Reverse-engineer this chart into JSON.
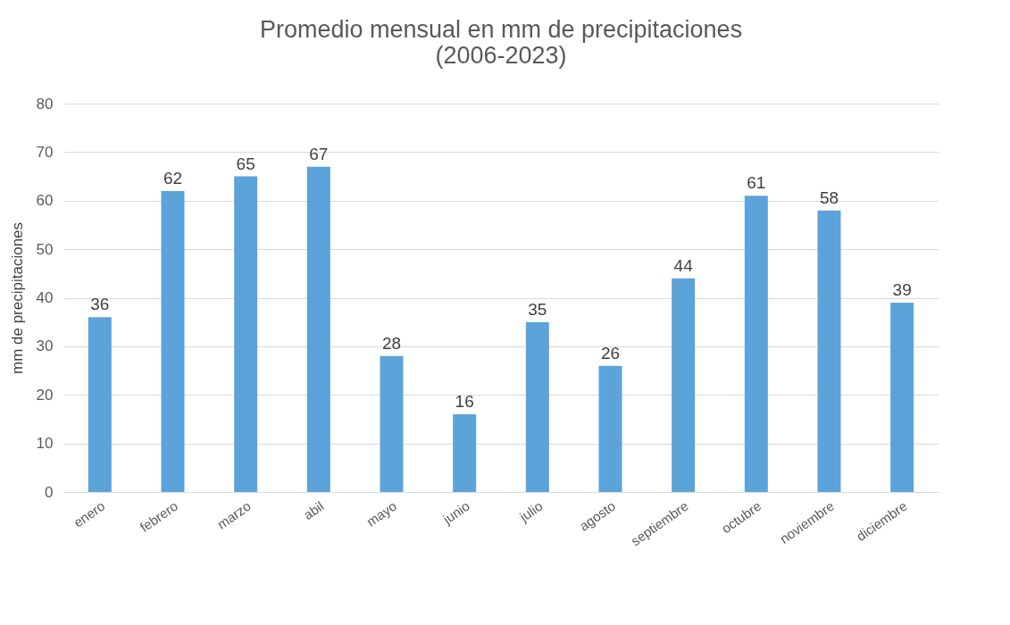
{
  "chart_data": {
    "type": "bar",
    "title": [
      "Promedio mensual en mm de precipitaciones",
      "(2006-2023)"
    ],
    "ylabel": "mm de precipitaciones",
    "categories": [
      "enero",
      "febrero",
      "marzo",
      "abil",
      "mayo",
      "junio",
      "julio",
      "agosto",
      "septiembre",
      "octubre",
      "noviembre",
      "diciembre"
    ],
    "values": [
      36,
      62,
      65,
      67,
      28,
      16,
      35,
      26,
      44,
      61,
      58,
      39
    ],
    "color": "#5ba3d9",
    "ylim": [
      0,
      80
    ],
    "yticks": [
      0,
      10,
      20,
      30,
      40,
      50,
      60,
      70,
      80
    ],
    "grid": "y",
    "data_labels": true
  }
}
